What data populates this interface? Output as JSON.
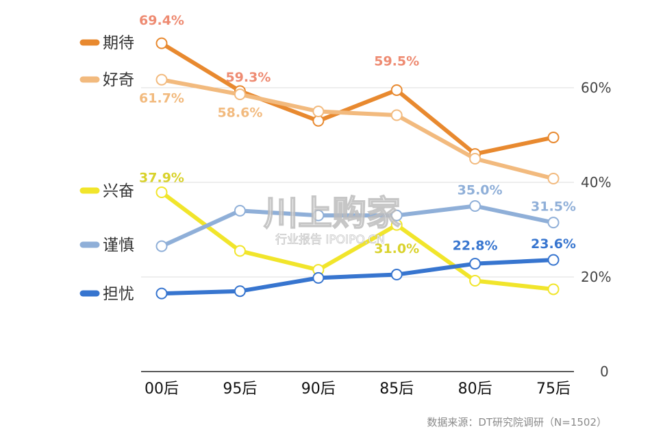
{
  "chart_data": {
    "type": "line",
    "categories": [
      "00后",
      "95后",
      "90后",
      "85后",
      "80后",
      "75后"
    ],
    "ylim": [
      0,
      70
    ],
    "y_ticks": [
      "0",
      "20%",
      "40%",
      "60%"
    ],
    "y_tick_values": [
      0,
      20,
      40,
      60
    ],
    "y_axis_side": "right",
    "grid": true,
    "legend_position": "left",
    "series": [
      {
        "name": "期待",
        "color": "#E8892F",
        "values": [
          69.4,
          59.3,
          53.0,
          59.5,
          46.0,
          49.5
        ],
        "labels": [
          "69.4%",
          "59.3%",
          "",
          "59.5%",
          "",
          ""
        ],
        "label_color": "#EE8B72"
      },
      {
        "name": "好奇",
        "color": "#F2BA7E",
        "values": [
          61.7,
          58.6,
          55.0,
          54.2,
          45.0,
          40.8
        ],
        "labels": [
          "61.7%",
          "58.6%",
          "",
          "",
          "",
          ""
        ],
        "label_color": "#F2BA7E"
      },
      {
        "name": "兴奋",
        "color": "#F1E52B",
        "values": [
          37.9,
          25.5,
          21.5,
          31.0,
          19.2,
          17.4
        ],
        "labels": [
          "37.9%",
          "",
          "",
          "31.0%",
          "",
          ""
        ],
        "label_color": "#D9D22C"
      },
      {
        "name": "谨慎",
        "color": "#8FAFD8",
        "values": [
          26.5,
          34.0,
          33.0,
          33.0,
          35.0,
          31.5
        ],
        "labels": [
          "",
          "",
          "",
          "",
          "35.0%",
          "31.5%"
        ],
        "label_color": "#8FAFD8"
      },
      {
        "name": "担忧",
        "color": "#3775CF",
        "values": [
          16.5,
          17.0,
          19.8,
          20.5,
          22.8,
          23.6
        ],
        "labels": [
          "",
          "",
          "",
          "",
          "22.8%",
          "23.6%"
        ],
        "label_color": "#3775CF"
      }
    ]
  },
  "watermark": {
    "main": "川上购家",
    "sub": "行业报告 IPOIPO.CN"
  },
  "source_note": "数据来源：DT研究院调研（N=1502）"
}
